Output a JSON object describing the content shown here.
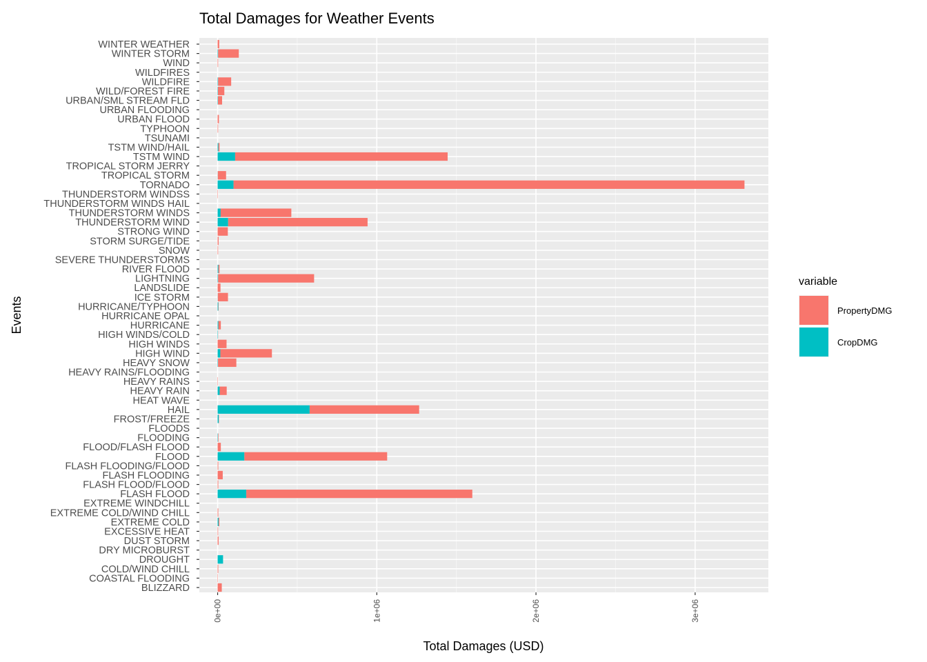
{
  "chart_data": {
    "type": "bar",
    "orientation": "horizontal",
    "stacked": true,
    "title": "Total Damages for Weather Events",
    "xlabel": "Total Damages (USD)",
    "ylabel": "Events",
    "xlim": [
      -115000,
      3460000
    ],
    "x_ticks": [
      0,
      1000000,
      2000000,
      3000000
    ],
    "x_tick_labels": [
      "0e+00",
      "1e+06",
      "2e+06",
      "3e+06"
    ],
    "grid": true,
    "legend": {
      "title": "variable",
      "position": "right"
    },
    "categories": [
      "WINTER WEATHER",
      "WINTER STORM",
      "WIND",
      "WILDFIRES",
      "WILDFIRE",
      "WILD/FOREST FIRE",
      "URBAN/SML STREAM FLD",
      "URBAN FLOODING",
      "URBAN FLOOD",
      "TYPHOON",
      "TSUNAMI",
      "TSTM WIND/HAIL",
      "TSTM WIND",
      "TROPICAL STORM JERRY",
      "TROPICAL STORM",
      "TORNADO",
      "THUNDERSTORM WINDSS",
      "THUNDERSTORM WINDS HAIL",
      "THUNDERSTORM WINDS",
      "THUNDERSTORM WIND",
      "STRONG WIND",
      "STORM SURGE/TIDE",
      "SNOW",
      "SEVERE THUNDERSTORMS",
      "RIVER FLOOD",
      "LIGHTNING",
      "LANDSLIDE",
      "ICE STORM",
      "HURRICANE/TYPHOON",
      "HURRICANE OPAL",
      "HURRICANE",
      "HIGH WINDS/COLD",
      "HIGH WINDS",
      "HIGH WIND",
      "HEAVY SNOW",
      "HEAVY RAINS/FLOODING",
      "HEAVY RAINS",
      "HEAVY RAIN",
      "HEAT WAVE",
      "HAIL",
      "FROST/FREEZE",
      "FLOODS",
      "FLOODING",
      "FLOOD/FLASH FLOOD",
      "FLOOD",
      "FLASH FLOODING/FLOOD",
      "FLASH FLOODING",
      "FLASH FLOOD/FLOOD",
      "FLASH FLOOD",
      "EXTREME WINDCHILL",
      "EXTREME COLD/WIND CHILL",
      "EXTREME COLD",
      "EXCESSIVE HEAT",
      "DUST STORM",
      "DRY MICROBURST",
      "DROUGHT",
      "COLD/WIND CHILL",
      "COASTAL FLOODING",
      "BLIZZARD"
    ],
    "series": [
      {
        "name": "CropDMG",
        "color": "#00BFC4",
        "values": [
          0,
          3000,
          0,
          0,
          3000,
          2000,
          2000,
          0,
          0,
          0,
          0,
          5000,
          110000,
          0,
          1000,
          100000,
          0,
          0,
          19000,
          66000,
          0,
          0,
          0,
          0,
          5000,
          3000,
          0,
          1000,
          4000,
          0,
          5000,
          2000,
          0,
          17000,
          2500,
          0,
          0,
          13000,
          0,
          578000,
          7000,
          0,
          2000,
          0,
          168000,
          0,
          0,
          0,
          180000,
          0,
          0,
          6000,
          0,
          0,
          0,
          34000,
          0,
          0,
          0
        ]
      },
      {
        "name": "PropertyDMG",
        "color": "#F8766D",
        "values": [
          10000,
          130000,
          3000,
          0,
          82000,
          40000,
          26000,
          0,
          8000,
          3000,
          0,
          7000,
          1335000,
          0,
          52000,
          3210000,
          2000,
          0,
          444000,
          876000,
          64000,
          6000,
          3000,
          0,
          7000,
          603000,
          18000,
          64000,
          2000,
          0,
          15000,
          1000,
          56000,
          324000,
          115000,
          0,
          2000,
          44000,
          0,
          688000,
          2000,
          0,
          3000,
          20000,
          897000,
          4000,
          32000,
          4000,
          1420000,
          0,
          4000,
          5000,
          3000,
          6000,
          0,
          0,
          4000,
          2000,
          26000
        ]
      }
    ],
    "legend_order": [
      "PropertyDMG",
      "CropDMG"
    ]
  }
}
